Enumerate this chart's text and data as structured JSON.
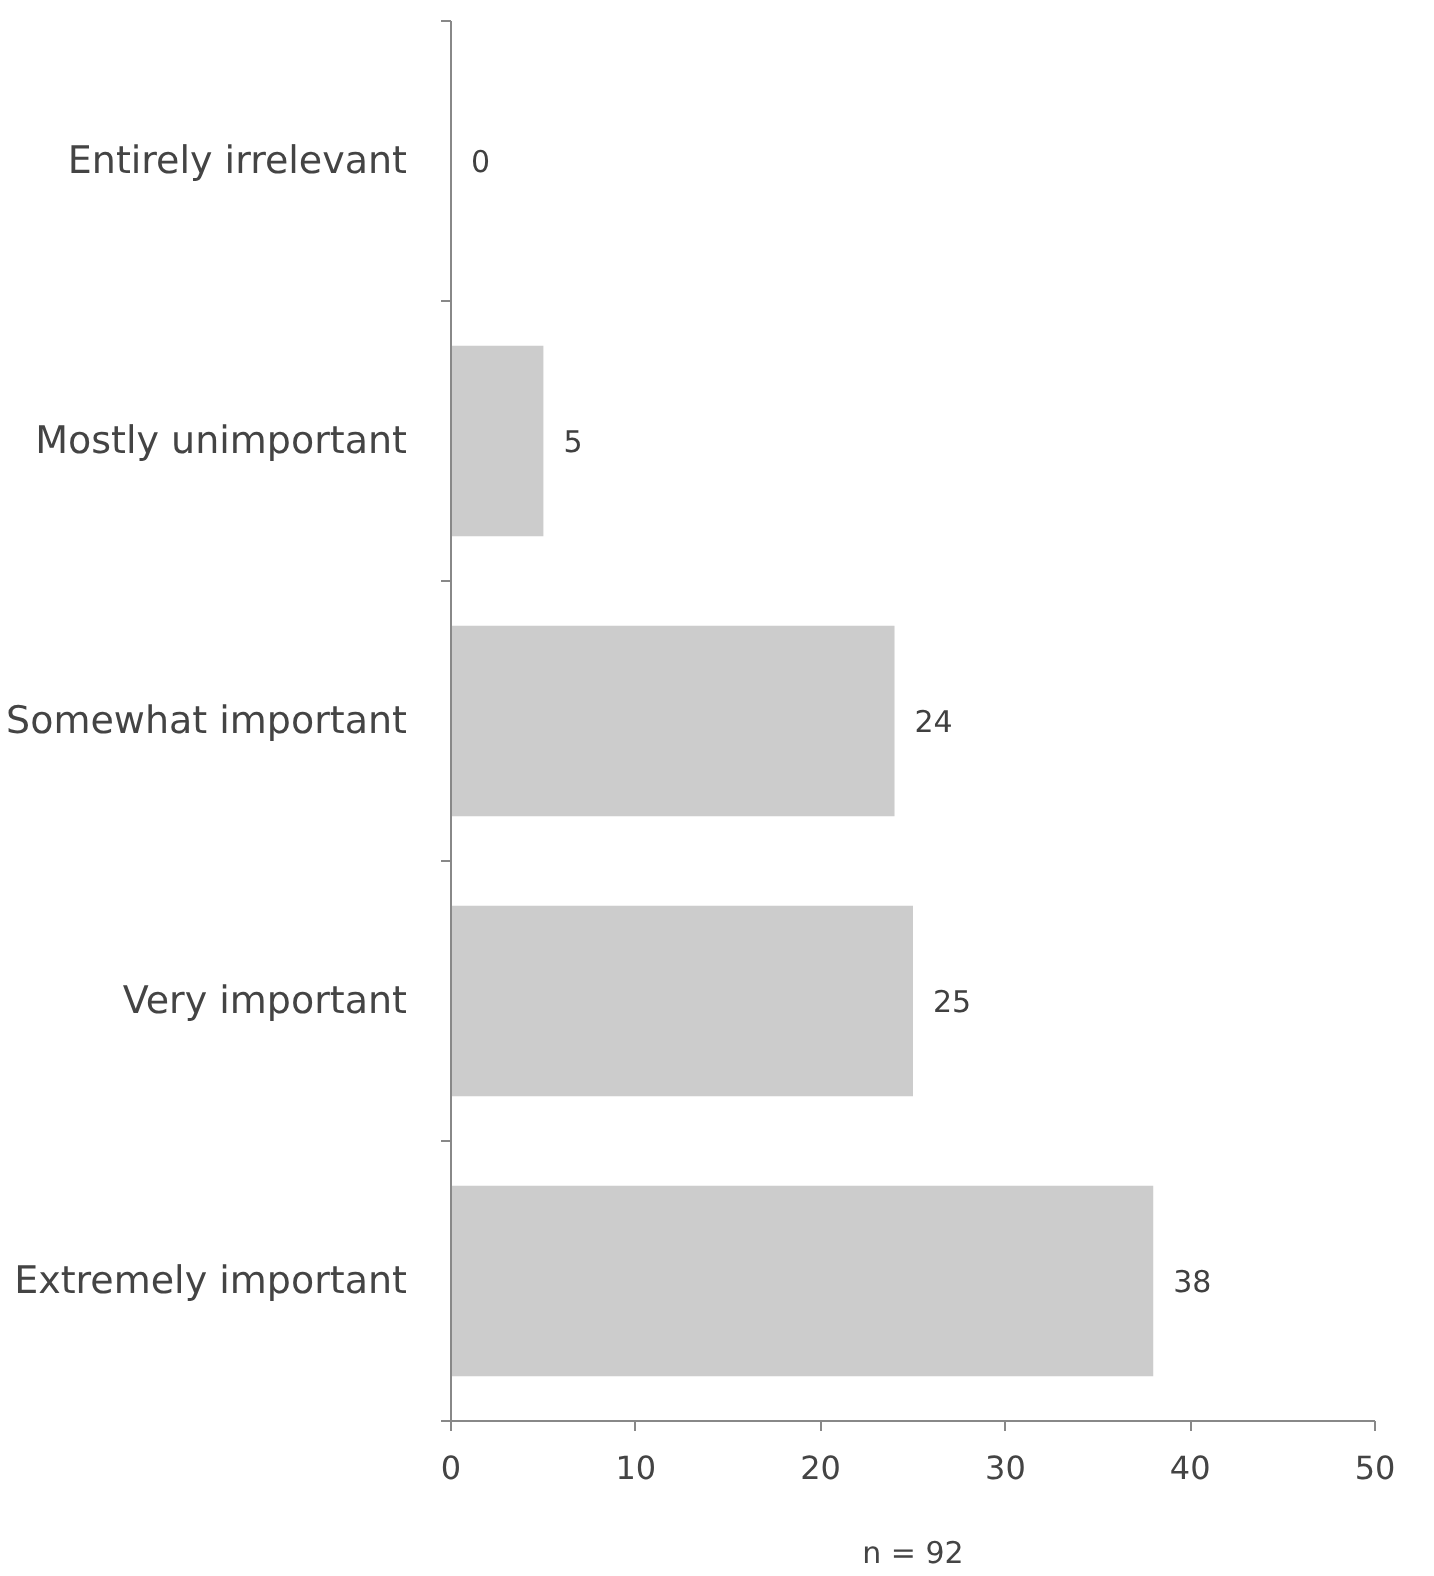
{
  "chart_data": {
    "type": "bar",
    "orientation": "horizontal",
    "categories": [
      "Entirely irrelevant",
      "Mostly unimportant",
      "Somewhat important",
      "Very important",
      "Extremely important"
    ],
    "values": [
      0,
      5,
      24,
      25,
      38
    ],
    "color": "#cccccc",
    "xlim": [
      0,
      50
    ],
    "xticks": [
      0,
      10,
      20,
      30,
      40,
      50
    ],
    "xlabel": "n = 92",
    "data_labels": true,
    "grid": false
  }
}
